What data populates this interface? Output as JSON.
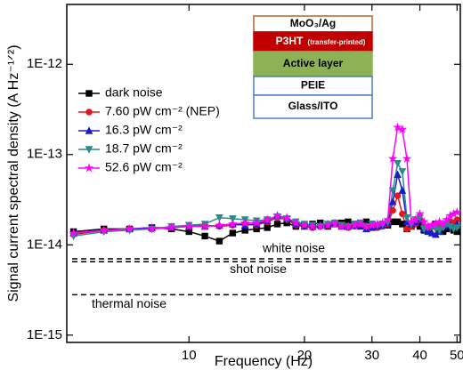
{
  "chart_data": {
    "type": "line",
    "xlabel": "Frequency (Hz)",
    "ylabel": "Signal current spectral density (A Hz⁻¹ᐟ²)",
    "xscale": "log",
    "yscale": "log",
    "xlim": [
      4.8,
      51
    ],
    "ylim": [
      8.3e-16,
      4.6e-12
    ],
    "xticks": [
      10,
      20,
      30,
      40,
      50
    ],
    "yticks": [
      {
        "value": 1e-15,
        "label": "1E-15"
      },
      {
        "value": 1e-14,
        "label": "1E-14"
      },
      {
        "value": 1e-13,
        "label": "1E-13"
      },
      {
        "value": 1e-12,
        "label": "1E-12"
      }
    ],
    "x": [
      5,
      6,
      7,
      8,
      9,
      10,
      11,
      12,
      13,
      14,
      15,
      16,
      17,
      18,
      19,
      20,
      21,
      22,
      23,
      24,
      25,
      26,
      27,
      28,
      29,
      30,
      31,
      32,
      33,
      34,
      35,
      36,
      37,
      38,
      39,
      40,
      41,
      42,
      43,
      44,
      45,
      46,
      47,
      48,
      49,
      50
    ],
    "series": [
      {
        "name": "dark noise",
        "color": "#000000",
        "marker": "square",
        "values": [
          1.4e-14,
          1.5e-14,
          1.5e-14,
          1.55e-14,
          1.5e-14,
          1.4e-14,
          1.25e-14,
          1.1e-14,
          1.35e-14,
          1.45e-14,
          1.5e-14,
          1.55e-14,
          1.7e-14,
          1.75e-14,
          1.6e-14,
          1.65e-14,
          1.7e-14,
          1.75e-14,
          1.6e-14,
          1.7e-14,
          1.75e-14,
          1.8e-14,
          1.7e-14,
          1.75e-14,
          1.8e-14,
          1.7e-14,
          1.6e-14,
          1.7e-14,
          1.65e-14,
          1.8e-14,
          1.8e-14,
          1.7e-14,
          1.5e-14,
          1.6e-14,
          1.7e-14,
          1.6e-14,
          1.45e-14,
          1.5e-14,
          1.6e-14,
          1.7e-14,
          1.5e-14,
          1.4e-14,
          1.5e-14,
          1.6e-14,
          1.45e-14,
          1.4e-14
        ]
      },
      {
        "name": "7.60 pW cm⁻² (NEP)",
        "color": "#e8161b",
        "marker": "circle",
        "values": [
          1.3e-14,
          1.45e-14,
          1.5e-14,
          1.5e-14,
          1.55e-14,
          1.6e-14,
          1.65e-14,
          1.6e-14,
          1.65e-14,
          1.7e-14,
          1.65e-14,
          1.8e-14,
          2e-14,
          1.9e-14,
          1.65e-14,
          1.6e-14,
          1.55e-14,
          1.6e-14,
          1.65e-14,
          1.7e-14,
          1.6e-14,
          1.55e-14,
          1.6e-14,
          1.65e-14,
          1.55e-14,
          1.6e-14,
          1.55e-14,
          1.6e-14,
          1.7e-14,
          2.4e-14,
          3.5e-14,
          2.2e-14,
          1.5e-14,
          1.6e-14,
          1.7e-14,
          1.9e-14,
          1.6e-14,
          1.5e-14,
          1.6e-14,
          1.7e-14,
          1.65e-14,
          1.6e-14,
          1.7e-14,
          1.8e-14,
          1.75e-14,
          1.9e-14
        ]
      },
      {
        "name": "16.3 pW cm⁻²",
        "color": "#1a1acc",
        "marker": "triangle-up",
        "values": [
          1.35e-14,
          1.45e-14,
          1.5e-14,
          1.55e-14,
          1.55e-14,
          1.6e-14,
          1.6e-14,
          1.65e-14,
          1.7e-14,
          1.65e-14,
          1.7e-14,
          1.85e-14,
          2.1e-14,
          1.95e-14,
          1.7e-14,
          1.6e-14,
          1.6e-14,
          1.65e-14,
          1.7e-14,
          1.75e-14,
          1.6e-14,
          1.6e-14,
          1.65e-14,
          1.6e-14,
          1.5e-14,
          1.55e-14,
          1.6e-14,
          1.65e-14,
          1.75e-14,
          3e-14,
          6e-14,
          4e-14,
          1.8e-14,
          1.7e-14,
          1.8e-14,
          1.9e-14,
          1.5e-14,
          1.4e-14,
          1.35e-14,
          1.3e-14,
          1.4e-14,
          1.6e-14,
          1.7e-14,
          1.65e-14,
          1.6e-14,
          1.7e-14
        ]
      },
      {
        "name": "18.7 pW cm⁻²",
        "color": "#2a8a8a",
        "marker": "triangle-down",
        "values": [
          1.25e-14,
          1.4e-14,
          1.45e-14,
          1.5e-14,
          1.6e-14,
          1.65e-14,
          1.7e-14,
          2e-14,
          1.95e-14,
          1.9e-14,
          1.85e-14,
          1.9e-14,
          2.05e-14,
          1.95e-14,
          1.8e-14,
          1.7e-14,
          1.65e-14,
          1.6e-14,
          1.7e-14,
          1.75e-14,
          1.65e-14,
          1.6e-14,
          1.7e-14,
          1.75e-14,
          1.6e-14,
          1.7e-14,
          1.65e-14,
          1.7e-14,
          1.8e-14,
          4e-14,
          8e-14,
          6.5e-14,
          2e-14,
          1.7e-14,
          1.9e-14,
          2e-14,
          1.5e-14,
          1.55e-14,
          1.6e-14,
          1.5e-14,
          1.45e-14,
          1.55e-14,
          1.7e-14,
          1.6e-14,
          1.5e-14,
          1.55e-14
        ]
      },
      {
        "name": "52.6 pW cm⁻²",
        "color": "#ff00ff",
        "marker": "star",
        "values": [
          1.35e-14,
          1.45e-14,
          1.5e-14,
          1.5e-14,
          1.55e-14,
          1.6e-14,
          1.6e-14,
          1.65e-14,
          1.7e-14,
          1.75e-14,
          1.75e-14,
          1.9e-14,
          2.1e-14,
          2e-14,
          1.75e-14,
          1.65e-14,
          1.6e-14,
          1.6e-14,
          1.65e-14,
          1.7e-14,
          1.6e-14,
          1.6e-14,
          1.65e-14,
          1.7e-14,
          1.6e-14,
          1.65e-14,
          1.7e-14,
          1.75e-14,
          1.9e-14,
          9e-14,
          2e-13,
          1.9e-13,
          9e-14,
          1.8e-14,
          1.9e-14,
          2.2e-14,
          1.8e-14,
          1.6e-14,
          1.65e-14,
          1.7e-14,
          1.8e-14,
          1.7e-14,
          1.9e-14,
          2.1e-14,
          2.2e-14,
          2.3e-14
        ]
      }
    ],
    "reference_lines": [
      {
        "name": "white noise",
        "value": 7e-15
      },
      {
        "name": "shot noise",
        "value": 6.5e-15
      },
      {
        "name": "thermal noise",
        "value": 2.8e-15
      }
    ],
    "inset": {
      "layers": [
        {
          "label": "MoO₃/Ag",
          "fill": "#ffffff",
          "border": "#b5652a"
        },
        {
          "label": "P3HT",
          "note": "(transfer-printed)",
          "fill": "#c00000",
          "border": "#c00000"
        },
        {
          "label": "Active layer",
          "fill": "#8db255",
          "border": "#8db255"
        },
        {
          "label": "PEIE",
          "fill": "#ffffff",
          "border": "#4a7ec0"
        },
        {
          "label": "Glass/ITO",
          "fill": "#ffffff",
          "border": "#4a7ec0"
        }
      ]
    }
  }
}
